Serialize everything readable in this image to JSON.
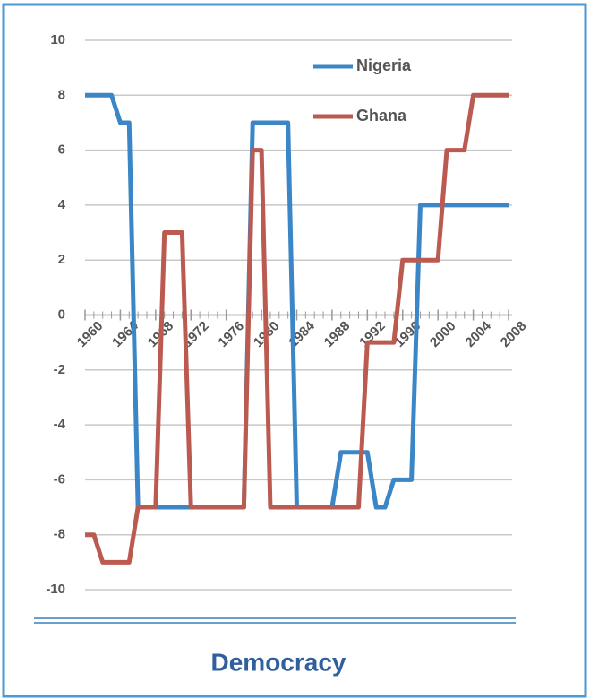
{
  "chart_data": {
    "type": "line",
    "title": "Democracy",
    "x": [
      1960,
      1961,
      1962,
      1963,
      1964,
      1965,
      1966,
      1967,
      1968,
      1969,
      1970,
      1971,
      1972,
      1973,
      1974,
      1975,
      1976,
      1977,
      1978,
      1979,
      1980,
      1981,
      1982,
      1983,
      1984,
      1985,
      1986,
      1987,
      1988,
      1989,
      1990,
      1991,
      1992,
      1993,
      1994,
      1995,
      1996,
      1997,
      1998,
      1999,
      2000,
      2001,
      2002,
      2003,
      2004,
      2005,
      2006,
      2007,
      2008
    ],
    "series": [
      {
        "name": "Nigeria",
        "color": "#3b86c6",
        "values": [
          8,
          8,
          8,
          8,
          7,
          7,
          -7,
          -7,
          -7,
          -7,
          -7,
          -7,
          -7,
          -7,
          -7,
          -7,
          -7,
          -7,
          -7,
          7,
          7,
          7,
          7,
          7,
          -7,
          -7,
          -7,
          -7,
          -7,
          -5,
          -5,
          -5,
          -5,
          -7,
          -7,
          -6,
          -6,
          -6,
          4,
          4,
          4,
          4,
          4,
          4,
          4,
          4,
          4,
          4,
          4
        ]
      },
      {
        "name": "Ghana",
        "color": "#bb5a50",
        "values": [
          -8,
          -8,
          -9,
          -9,
          -9,
          -9,
          -7,
          -7,
          -7,
          3,
          3,
          3,
          -7,
          -7,
          -7,
          -7,
          -7,
          -7,
          -7,
          6,
          6,
          -7,
          -7,
          -7,
          -7,
          -7,
          -7,
          -7,
          -7,
          -7,
          -7,
          -7,
          -1,
          -1,
          -1,
          -1,
          2,
          2,
          2,
          2,
          2,
          6,
          6,
          6,
          8,
          8,
          8,
          8,
          8
        ]
      }
    ],
    "xlim": [
      1960,
      2008
    ],
    "xticks": [
      1960,
      1964,
      1968,
      1972,
      1976,
      1980,
      1984,
      1988,
      1992,
      1996,
      2000,
      2004,
      2008
    ],
    "ylim": [
      -10,
      10
    ],
    "yticks": [
      -10,
      -8,
      -6,
      -4,
      -2,
      0,
      2,
      4,
      6,
      8,
      10
    ],
    "grid": true,
    "legend": "top-right"
  }
}
